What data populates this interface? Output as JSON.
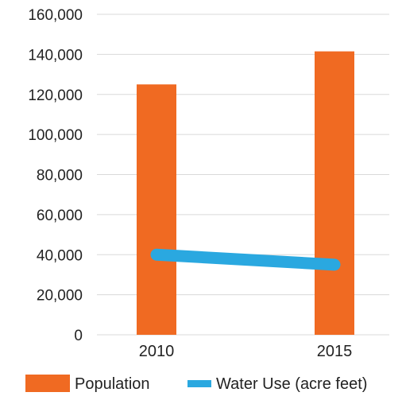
{
  "chart_data": {
    "type": "bar",
    "categories": [
      "2010",
      "2015"
    ],
    "series": [
      {
        "name": "Population",
        "kind": "bar",
        "color": "#F06A22",
        "values": [
          125000,
          141500
        ]
      },
      {
        "name": "Water Use (acre feet)",
        "kind": "line",
        "color": "#2AA8E0",
        "values": [
          40000,
          35000
        ]
      }
    ],
    "y_ticks": [
      "160,000",
      "140,000",
      "120,000",
      "100,000",
      "80,000",
      "60,000",
      "40,000",
      "20,000",
      "0"
    ],
    "ylim": [
      0,
      160000
    ],
    "grid": true,
    "legend": "bottom"
  }
}
